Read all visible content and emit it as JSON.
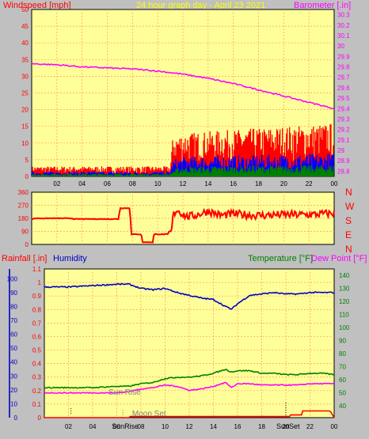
{
  "header": {
    "wind_label": "Windspeed [mph]",
    "title": "24 hour graph day - April 23 2021",
    "baro_label": "Barometer [.in]"
  },
  "rain_label": "Rainfall [.in]",
  "humidity_label": "Humidity",
  "temp_label": "Temperature [°F]",
  "dew_label": "Dew Point [°F]",
  "sun_rise_label": "Sun Rise",
  "moon_set_label": "Moon Set",
  "sun_rise_tick": "SunRise",
  "sun_set_tick": "SunSet",
  "colors": {
    "background": "#c0c0c0",
    "plot_bg": "#ffff99",
    "grid": "#ff9966",
    "wind": "#ff0000",
    "gust": "#0000ff",
    "avg": "#008000",
    "barometer": "#ff00ff",
    "direction": "#ff0000",
    "humidity": "#0000c0",
    "temperature": "#008000",
    "dewpoint": "#ff00ff",
    "rain": "#ff0000"
  },
  "chart_data": [
    {
      "type": "bar",
      "name": "wind-baro",
      "x_ticks": [
        "02",
        "04",
        "06",
        "08",
        "10",
        "12",
        "14",
        "16",
        "18",
        "20",
        "22",
        "00"
      ],
      "y_left_ticks": [
        "0",
        "5",
        "10",
        "15",
        "20",
        "25",
        "30",
        "35",
        "40",
        "45",
        "50"
      ],
      "y_left_lim": [
        0,
        50
      ],
      "y_right_ticks": [
        "28.8",
        "28.9",
        "29",
        "29.1",
        "29.2",
        "29.3",
        "29.4",
        "29.5",
        "29.6",
        "29.7",
        "29.8",
        "29.9",
        "30",
        "30.1",
        "30.2",
        "30.3"
      ],
      "y_right_lim": [
        28.75,
        30.35
      ],
      "x_lim": [
        0,
        24
      ],
      "barometer": {
        "x": [
          0,
          2,
          4,
          6,
          8,
          10,
          12,
          14,
          16,
          18,
          20,
          22,
          24
        ],
        "y": [
          29.83,
          29.82,
          29.8,
          29.79,
          29.78,
          29.76,
          29.73,
          29.69,
          29.64,
          29.58,
          29.52,
          29.46,
          29.4
        ]
      },
      "wind_envelope": {
        "x": [
          0,
          11,
          11.2,
          12,
          24
        ],
        "max": [
          3,
          3,
          12,
          13,
          16
        ],
        "gust_max": [
          1.5,
          1.5,
          5,
          6,
          7
        ],
        "avg_max": [
          0.8,
          0.8,
          2,
          3,
          3.5
        ]
      }
    },
    {
      "type": "line",
      "name": "direction",
      "y_left_ticks": [
        "0",
        "90",
        "180",
        "270",
        "360"
      ],
      "y_left_lim": [
        0,
        360
      ],
      "y_right_labels": [
        "N",
        "W",
        "S",
        "E",
        "N"
      ],
      "direction": {
        "x": [
          0,
          0.3,
          3.2,
          3.3,
          6.9,
          7.0,
          7.8,
          7.9,
          8.7,
          8.8,
          9.6,
          9.7,
          10.8,
          10.9,
          11.1,
          11.2,
          11.5,
          12.3,
          13.0,
          14.0,
          15.0,
          16.0,
          18.0,
          20.0,
          22.0,
          24.0
        ],
        "y": [
          175,
          180,
          180,
          175,
          175,
          250,
          250,
          70,
          70,
          15,
          15,
          70,
          70,
          90,
          90,
          195,
          240,
          190,
          200,
          230,
          200,
          210,
          200,
          205,
          205,
          215
        ]
      }
    },
    {
      "type": "line",
      "name": "humidity-temp",
      "x_ticks": [
        "02",
        "04",
        "06",
        "08",
        "10",
        "12",
        "14",
        "16",
        "18",
        "20",
        "22",
        "00"
      ],
      "rain_ticks": [
        "0",
        "0.1",
        "0.2",
        "0.3",
        "0.4",
        "0.5",
        "0.6",
        "0.7",
        "0.8",
        "0.9",
        "1",
        "1.1"
      ],
      "rain_lim": [
        0,
        1.1
      ],
      "humidity_ticks": [
        "0",
        "10",
        "20",
        "30",
        "40",
        "50",
        "60",
        "70",
        "80",
        "90",
        "100"
      ],
      "humidity_lim": [
        0,
        107
      ],
      "temp_ticks": [
        "40",
        "50",
        "60",
        "70",
        "80",
        "90",
        "100",
        "110",
        "120",
        "130",
        "140"
      ],
      "temp_lim": [
        31,
        145
      ],
      "humidity": {
        "x": [
          0,
          2,
          4,
          6,
          7,
          8,
          9,
          10,
          11,
          12,
          13,
          14,
          15,
          15.5,
          16,
          17,
          18,
          19,
          20,
          21,
          22,
          23,
          24
        ],
        "y": [
          94,
          94,
          95,
          96,
          96,
          93,
          92,
          93,
          90,
          88,
          86,
          85,
          80,
          78,
          82,
          88,
          89,
          90,
          89,
          89,
          90,
          90,
          90
        ]
      },
      "temperature": {
        "x": [
          0,
          2,
          4,
          6,
          7,
          8,
          9,
          10,
          11,
          12,
          13,
          14,
          15,
          15.5,
          16,
          17,
          18,
          19,
          20,
          21,
          22,
          23,
          24
        ],
        "y": [
          54,
          54,
          54,
          55,
          55,
          57,
          58,
          61,
          62,
          62,
          63,
          65,
          68,
          66,
          67,
          67,
          65,
          65,
          64,
          64,
          65,
          65,
          64
        ]
      },
      "dewpoint": {
        "x": [
          0,
          2,
          4,
          6,
          7,
          8,
          9,
          10,
          11,
          12,
          13,
          14,
          15,
          15.5,
          16,
          17,
          18,
          19,
          20,
          21,
          22,
          23,
          24
        ],
        "y": [
          50,
          50,
          50,
          50,
          51,
          53,
          54,
          56,
          55,
          52,
          53,
          55,
          58,
          54,
          57,
          57,
          56,
          56,
          56,
          56,
          57,
          57,
          57
        ]
      },
      "rain": {
        "x": [
          0,
          7.0,
          7.1,
          20.3,
          20.4,
          21.3,
          21.4,
          23.6,
          23.7,
          24
        ],
        "y": [
          0,
          0,
          0.008,
          0.008,
          0.02,
          0.02,
          0.05,
          0.05,
          0.045,
          0.0
        ]
      },
      "sun_rise_hour": 6.5,
      "sun_set_hour": 20.0,
      "moon_set_hour": 7.6
    }
  ]
}
